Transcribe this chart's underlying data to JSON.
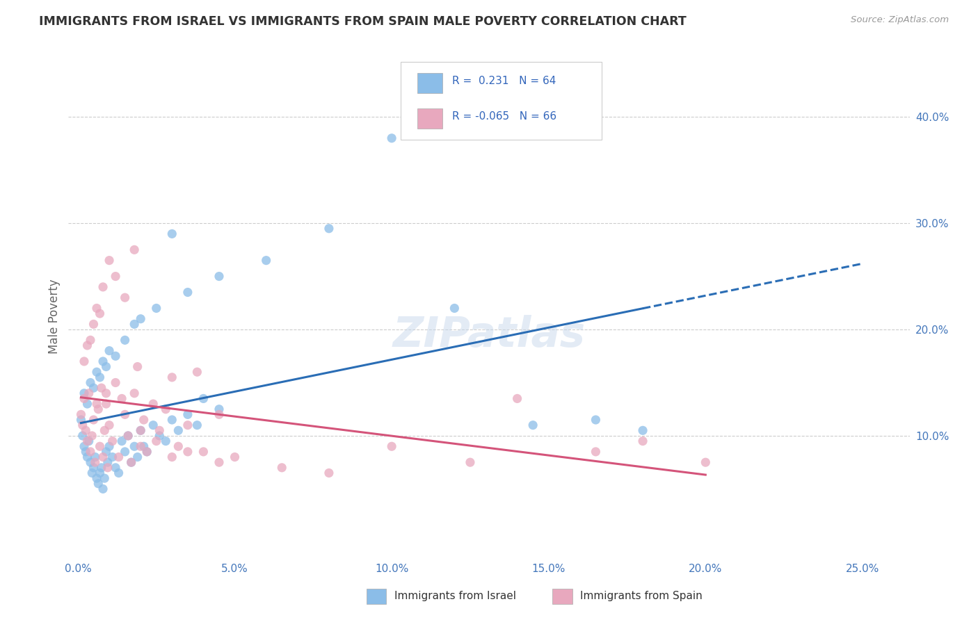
{
  "title": "IMMIGRANTS FROM ISRAEL VS IMMIGRANTS FROM SPAIN MALE POVERTY CORRELATION CHART",
  "source": "Source: ZipAtlas.com",
  "xlabel_vals": [
    0.0,
    5.0,
    10.0,
    15.0,
    20.0,
    25.0
  ],
  "ylabel": "Male Poverty",
  "ylabel_vals_right": [
    10.0,
    20.0,
    30.0,
    40.0
  ],
  "xlim": [
    -0.3,
    26.5
  ],
  "ylim": [
    -1.5,
    44.0
  ],
  "legend_israel_r": "0.231",
  "legend_israel_n": "64",
  "legend_spain_r": "-0.065",
  "legend_spain_n": "66",
  "legend_labels": [
    "Immigrants from Israel",
    "Immigrants from Spain"
  ],
  "israel_color": "#8bbde8",
  "spain_color": "#e8a8be",
  "trendline_israel_color": "#2a6db5",
  "trendline_spain_color": "#d4547a",
  "background_color": "#ffffff",
  "grid_color": "#cccccc",
  "title_color": "#333333",
  "axis_label_color": "#666666",
  "right_tick_color": "#4477bb",
  "bottom_tick_color": "#4477bb",
  "watermark": "ZIPatlas",
  "israel_x": [
    0.1,
    0.15,
    0.2,
    0.25,
    0.3,
    0.35,
    0.4,
    0.45,
    0.5,
    0.55,
    0.6,
    0.65,
    0.7,
    0.75,
    0.8,
    0.85,
    0.9,
    0.95,
    1.0,
    1.1,
    1.2,
    1.3,
    1.4,
    1.5,
    1.6,
    1.7,
    1.8,
    1.9,
    2.0,
    2.1,
    2.2,
    2.4,
    2.6,
    2.8,
    3.0,
    3.2,
    3.5,
    3.8,
    4.0,
    4.5,
    0.2,
    0.3,
    0.4,
    0.5,
    0.6,
    0.7,
    0.8,
    0.9,
    1.0,
    1.2,
    1.5,
    1.8,
    2.0,
    2.5,
    3.0,
    3.5,
    4.5,
    6.0,
    8.0,
    10.0,
    12.0,
    14.5,
    16.5,
    18.0
  ],
  "israel_y": [
    11.5,
    10.0,
    9.0,
    8.5,
    8.0,
    9.5,
    7.5,
    6.5,
    7.0,
    8.0,
    6.0,
    5.5,
    6.5,
    7.0,
    5.0,
    6.0,
    8.5,
    7.5,
    9.0,
    8.0,
    7.0,
    6.5,
    9.5,
    8.5,
    10.0,
    7.5,
    9.0,
    8.0,
    10.5,
    9.0,
    8.5,
    11.0,
    10.0,
    9.5,
    11.5,
    10.5,
    12.0,
    11.0,
    13.5,
    12.5,
    14.0,
    13.0,
    15.0,
    14.5,
    16.0,
    15.5,
    17.0,
    16.5,
    18.0,
    17.5,
    19.0,
    20.5,
    21.0,
    22.0,
    29.0,
    23.5,
    25.0,
    26.5,
    29.5,
    38.0,
    22.0,
    11.0,
    11.5,
    10.5
  ],
  "spain_x": [
    0.1,
    0.15,
    0.2,
    0.25,
    0.3,
    0.35,
    0.4,
    0.45,
    0.5,
    0.55,
    0.6,
    0.65,
    0.7,
    0.75,
    0.8,
    0.85,
    0.9,
    0.95,
    1.0,
    1.1,
    1.2,
    1.3,
    1.4,
    1.5,
    1.6,
    1.7,
    1.8,
    1.9,
    2.0,
    2.1,
    2.2,
    2.4,
    2.6,
    2.8,
    3.0,
    3.2,
    3.5,
    3.8,
    4.0,
    4.5,
    0.2,
    0.3,
    0.4,
    0.5,
    0.6,
    0.7,
    0.8,
    0.9,
    1.0,
    1.2,
    1.5,
    1.8,
    2.0,
    2.5,
    3.0,
    3.5,
    4.5,
    5.0,
    6.5,
    8.0,
    10.0,
    12.5,
    14.0,
    16.5,
    18.0,
    20.0
  ],
  "spain_y": [
    12.0,
    11.0,
    13.5,
    10.5,
    9.5,
    14.0,
    8.5,
    10.0,
    11.5,
    7.5,
    13.0,
    12.5,
    9.0,
    14.5,
    8.0,
    10.5,
    13.0,
    7.0,
    11.0,
    9.5,
    15.0,
    8.0,
    13.5,
    12.0,
    10.0,
    7.5,
    14.0,
    16.5,
    9.0,
    11.5,
    8.5,
    13.0,
    10.5,
    12.5,
    15.5,
    9.0,
    11.0,
    16.0,
    8.5,
    12.0,
    17.0,
    18.5,
    19.0,
    20.5,
    22.0,
    21.5,
    24.0,
    14.0,
    26.5,
    25.0,
    23.0,
    27.5,
    10.5,
    9.5,
    8.0,
    8.5,
    7.5,
    8.0,
    7.0,
    6.5,
    9.0,
    7.5,
    13.5,
    8.5,
    9.5,
    7.5
  ]
}
